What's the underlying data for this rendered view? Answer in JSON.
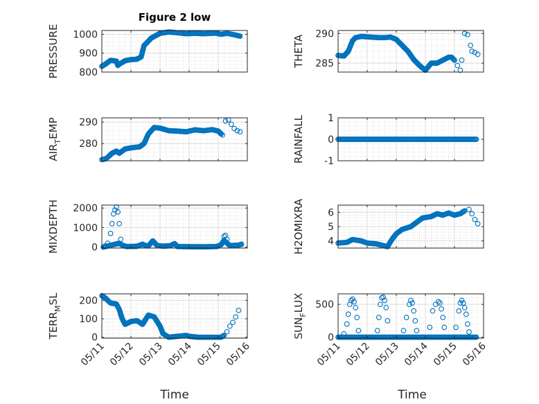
{
  "figure": {
    "title": "Figure 2 low",
    "xlabel": "Time"
  },
  "style": {
    "marker_color": "#0072bd",
    "grid_color": "#d9d9d9",
    "axis_color": "#262626"
  },
  "chart_data": [
    {
      "type": "scatter",
      "title": "Figure 2 low",
      "ylabel": "PRESSURE",
      "ylabel_parts": [
        {
          "t": "PRESSURE",
          "sub": false
        }
      ],
      "xlim": [
        0,
        5
      ],
      "ylim": [
        800,
        1020
      ],
      "yticks": [
        800,
        900,
        1000
      ],
      "ytick_labels": [
        "800",
        "900",
        "1000"
      ],
      "xticks": [
        0,
        1,
        2,
        3,
        4,
        5
      ],
      "xtick_labels": [
        "05/11",
        "05/12",
        "05/13",
        "05/14",
        "05/15",
        "05/16"
      ],
      "show_xtick_labels": false,
      "grid": true,
      "minor_grid": true,
      "series_dense": [
        [
          0,
          830
        ],
        [
          0.15,
          845
        ],
        [
          0.3,
          862
        ],
        [
          0.5,
          858
        ],
        [
          0.55,
          835
        ],
        [
          0.6,
          842
        ],
        [
          0.8,
          860
        ],
        [
          1.0,
          866
        ],
        [
          1.2,
          868
        ],
        [
          1.35,
          880
        ],
        [
          1.45,
          940
        ],
        [
          1.7,
          980
        ],
        [
          2.0,
          1005
        ],
        [
          2.3,
          1012
        ],
        [
          2.6,
          1008
        ],
        [
          2.9,
          1003
        ],
        [
          3.2,
          1005
        ],
        [
          3.5,
          1003
        ],
        [
          3.9,
          1006
        ],
        [
          4.1,
          1000
        ],
        [
          4.3,
          1005
        ],
        [
          4.6,
          996
        ],
        [
          4.75,
          990
        ]
      ],
      "series_sparse": []
    },
    {
      "type": "scatter",
      "ylabel": "THETA",
      "ylabel_parts": [
        {
          "t": "THETA",
          "sub": false
        }
      ],
      "xlim": [
        0,
        5
      ],
      "ylim": [
        283.5,
        290.5
      ],
      "yticks": [
        285,
        290
      ],
      "ytick_labels": [
        "285",
        "290"
      ],
      "xticks": [
        0,
        1,
        2,
        3,
        4,
        5
      ],
      "xtick_labels": [
        "05/11",
        "05/12",
        "05/13",
        "05/14",
        "05/15",
        "05/16"
      ],
      "show_xtick_labels": false,
      "grid": true,
      "minor_grid": true,
      "series_dense": [
        [
          0,
          286.3
        ],
        [
          0.2,
          286.2
        ],
        [
          0.35,
          287
        ],
        [
          0.5,
          288.8
        ],
        [
          0.6,
          289.3
        ],
        [
          0.8,
          289.5
        ],
        [
          1.1,
          289.4
        ],
        [
          1.4,
          289.3
        ],
        [
          1.6,
          289.3
        ],
        [
          1.8,
          289.4
        ],
        [
          2.0,
          289
        ],
        [
          2.2,
          288
        ],
        [
          2.4,
          287
        ],
        [
          2.6,
          285.6
        ],
        [
          2.8,
          284.6
        ],
        [
          3.0,
          283.8
        ],
        [
          3.2,
          285
        ],
        [
          3.4,
          285
        ],
        [
          3.6,
          285.5
        ],
        [
          3.8,
          286
        ],
        [
          3.9,
          286
        ],
        [
          4.0,
          285.5
        ]
      ],
      "series_sparse": [
        [
          4.1,
          284.6
        ],
        [
          4.2,
          283.8
        ],
        [
          4.25,
          285.5
        ],
        [
          4.35,
          290
        ],
        [
          4.45,
          289.8
        ],
        [
          4.55,
          288
        ],
        [
          4.6,
          287
        ],
        [
          4.7,
          286.8
        ],
        [
          4.8,
          286.5
        ]
      ]
    },
    {
      "type": "scatter",
      "ylabel": "AIR_TEMP",
      "ylabel_parts": [
        {
          "t": "AIR",
          "sub": false
        },
        {
          "t": "T",
          "sub": true
        },
        {
          "t": "EMP",
          "sub": false
        }
      ],
      "xlim": [
        0,
        5
      ],
      "ylim": [
        272,
        292
      ],
      "yticks": [
        280,
        290
      ],
      "ytick_labels": [
        "280",
        "290"
      ],
      "xticks": [
        0,
        1,
        2,
        3,
        4,
        5
      ],
      "xtick_labels": [
        "05/11",
        "05/12",
        "05/13",
        "05/14",
        "05/15",
        "05/16"
      ],
      "show_xtick_labels": false,
      "grid": true,
      "minor_grid": true,
      "series_dense": [
        [
          0,
          272.5
        ],
        [
          0.15,
          273
        ],
        [
          0.35,
          275.5
        ],
        [
          0.5,
          276.5
        ],
        [
          0.6,
          275.5
        ],
        [
          0.8,
          277.5
        ],
        [
          1.0,
          278
        ],
        [
          1.3,
          278.5
        ],
        [
          1.45,
          280
        ],
        [
          1.6,
          284.5
        ],
        [
          1.8,
          287.5
        ],
        [
          2.0,
          287.2
        ],
        [
          2.3,
          286
        ],
        [
          2.6,
          285.8
        ],
        [
          2.9,
          285.5
        ],
        [
          3.2,
          286.4
        ],
        [
          3.5,
          286
        ],
        [
          3.8,
          286.5
        ],
        [
          4.0,
          285.8
        ],
        [
          4.1,
          284.5
        ]
      ],
      "series_sparse": [
        [
          4.15,
          284
        ],
        [
          4.25,
          290.5
        ],
        [
          4.35,
          291
        ],
        [
          4.45,
          289
        ],
        [
          4.55,
          287
        ],
        [
          4.65,
          286
        ],
        [
          4.75,
          285.5
        ]
      ]
    },
    {
      "type": "scatter",
      "ylabel": "RAINFALL",
      "ylabel_parts": [
        {
          "t": "RAINFALL",
          "sub": false
        }
      ],
      "xlim": [
        0,
        5
      ],
      "ylim": [
        -1,
        1
      ],
      "yticks": [
        -1,
        0,
        1
      ],
      "ytick_labels": [
        "-1",
        "0",
        "1"
      ],
      "xticks": [
        0,
        1,
        2,
        3,
        4,
        5
      ],
      "xtick_labels": [
        "05/11",
        "05/12",
        "05/13",
        "05/14",
        "05/15",
        "05/16"
      ],
      "show_xtick_labels": false,
      "grid": true,
      "minor_grid": true,
      "series_dense": [
        [
          0,
          0
        ],
        [
          4.75,
          0
        ]
      ],
      "series_sparse": []
    },
    {
      "type": "scatter",
      "ylabel": "MIXDEPTH",
      "ylabel_parts": [
        {
          "t": "MIXDEPTH",
          "sub": false
        }
      ],
      "xlim": [
        0,
        5
      ],
      "ylim": [
        -50,
        2150
      ],
      "yticks": [
        0,
        1000,
        2000
      ],
      "ytick_labels": [
        "0",
        "1000",
        "2000"
      ],
      "xticks": [
        0,
        1,
        2,
        3,
        4,
        5
      ],
      "xtick_labels": [
        "05/11",
        "05/12",
        "05/13",
        "05/14",
        "05/15",
        "05/16"
      ],
      "show_xtick_labels": false,
      "grid": true,
      "minor_grid": true,
      "series_dense": [
        [
          0.05,
          0
        ],
        [
          0.6,
          200
        ],
        [
          0.7,
          100
        ],
        [
          0.85,
          30
        ],
        [
          1.2,
          40
        ],
        [
          1.4,
          150
        ],
        [
          1.5,
          80
        ],
        [
          1.6,
          60
        ],
        [
          1.75,
          320
        ],
        [
          1.9,
          80
        ],
        [
          2.1,
          50
        ],
        [
          2.35,
          70
        ],
        [
          2.5,
          180
        ],
        [
          2.6,
          30
        ],
        [
          3.0,
          20
        ],
        [
          3.5,
          15
        ],
        [
          3.95,
          30
        ],
        [
          4.1,
          120
        ],
        [
          4.2,
          350
        ],
        [
          4.3,
          200
        ],
        [
          4.4,
          80
        ],
        [
          4.7,
          100
        ],
        [
          4.8,
          150
        ]
      ],
      "series_sparse": [
        [
          0.1,
          50
        ],
        [
          0.2,
          200
        ],
        [
          0.3,
          700
        ],
        [
          0.35,
          1200
        ],
        [
          0.4,
          1700
        ],
        [
          0.45,
          1900
        ],
        [
          0.5,
          2050
        ],
        [
          0.55,
          1800
        ],
        [
          0.6,
          1200
        ],
        [
          0.65,
          400
        ],
        [
          4.2,
          550
        ],
        [
          4.25,
          600
        ],
        [
          4.3,
          400
        ]
      ]
    },
    {
      "type": "scatter",
      "ylabel": "H2OMIXRA",
      "ylabel_parts": [
        {
          "t": "H2OMIXRA",
          "sub": false
        }
      ],
      "xlim": [
        0,
        5
      ],
      "ylim": [
        3.5,
        6.5
      ],
      "yticks": [
        4,
        5,
        6
      ],
      "ytick_labels": [
        "4",
        "5",
        "6"
      ],
      "xticks": [
        0,
        1,
        2,
        3,
        4,
        5
      ],
      "xtick_labels": [
        "05/11",
        "05/12",
        "05/13",
        "05/14",
        "05/15",
        "05/16"
      ],
      "show_xtick_labels": false,
      "grid": true,
      "minor_grid": true,
      "series_dense": [
        [
          0,
          3.85
        ],
        [
          0.3,
          3.9
        ],
        [
          0.5,
          4.1
        ],
        [
          0.8,
          4.0
        ],
        [
          1.0,
          3.85
        ],
        [
          1.3,
          3.8
        ],
        [
          1.5,
          3.7
        ],
        [
          1.7,
          3.6
        ],
        [
          1.85,
          4.1
        ],
        [
          2.0,
          4.5
        ],
        [
          2.2,
          4.8
        ],
        [
          2.5,
          5.0
        ],
        [
          2.7,
          5.3
        ],
        [
          2.9,
          5.6
        ],
        [
          3.2,
          5.7
        ],
        [
          3.4,
          5.9
        ],
        [
          3.6,
          5.8
        ],
        [
          3.8,
          5.95
        ],
        [
          4.0,
          5.8
        ],
        [
          4.2,
          5.9
        ],
        [
          4.35,
          6.1
        ]
      ],
      "series_sparse": [
        [
          4.5,
          6.2
        ],
        [
          4.6,
          5.9
        ],
        [
          4.7,
          5.5
        ],
        [
          4.8,
          5.2
        ]
      ]
    },
    {
      "type": "scatter",
      "ylabel": "TERR_MSL",
      "ylabel_parts": [
        {
          "t": "TERR",
          "sub": false
        },
        {
          "t": "M",
          "sub": true
        },
        {
          "t": "SL",
          "sub": false
        }
      ],
      "xlim": [
        0,
        5
      ],
      "ylim": [
        -5,
        235
      ],
      "yticks": [
        0,
        100,
        200
      ],
      "ytick_labels": [
        "0",
        "100",
        "200"
      ],
      "xticks": [
        0,
        1,
        2,
        3,
        4,
        5
      ],
      "xtick_labels": [
        "05/11",
        "05/12",
        "05/13",
        "05/14",
        "05/15",
        "05/16"
      ],
      "show_xtick_labels": true,
      "grid": true,
      "minor_grid": true,
      "series_dense": [
        [
          0,
          225
        ],
        [
          0.1,
          215
        ],
        [
          0.3,
          185
        ],
        [
          0.5,
          180
        ],
        [
          0.6,
          150
        ],
        [
          0.7,
          100
        ],
        [
          0.8,
          70
        ],
        [
          1.0,
          85
        ],
        [
          1.2,
          90
        ],
        [
          1.4,
          70
        ],
        [
          1.6,
          120
        ],
        [
          1.8,
          110
        ],
        [
          2.0,
          60
        ],
        [
          2.1,
          20
        ],
        [
          2.3,
          0
        ],
        [
          2.6,
          5
        ],
        [
          2.9,
          10
        ],
        [
          3.0,
          5
        ],
        [
          3.3,
          0
        ],
        [
          3.6,
          0
        ],
        [
          3.9,
          0
        ],
        [
          4.1,
          0
        ],
        [
          4.2,
          10
        ]
      ],
      "series_sparse": [
        [
          0.65,
          120
        ],
        [
          4.3,
          30
        ],
        [
          4.4,
          60
        ],
        [
          4.5,
          80
        ],
        [
          4.6,
          110
        ],
        [
          4.7,
          145
        ]
      ]
    },
    {
      "type": "scatter",
      "ylabel": "SUN_FLUX",
      "ylabel_parts": [
        {
          "t": "SUN",
          "sub": false
        },
        {
          "t": "F",
          "sub": true
        },
        {
          "t": "LUX",
          "sub": false
        }
      ],
      "xlim": [
        0,
        5
      ],
      "ylim": [
        -15,
        660
      ],
      "yticks": [
        0,
        500
      ],
      "ytick_labels": [
        "0",
        "500"
      ],
      "xticks": [
        0,
        1,
        2,
        3,
        4,
        5
      ],
      "xtick_labels": [
        "05/11",
        "05/12",
        "05/13",
        "05/14",
        "05/15",
        "05/16"
      ],
      "show_xtick_labels": true,
      "grid": true,
      "minor_grid": true,
      "series_dense": [
        [
          0,
          0
        ],
        [
          0.15,
          0
        ],
        [
          0.75,
          0
        ],
        [
          0.95,
          0
        ],
        [
          1.05,
          0
        ],
        [
          1.3,
          0
        ],
        [
          1.7,
          0
        ],
        [
          2.0,
          0
        ],
        [
          2.1,
          0
        ],
        [
          2.3,
          0
        ],
        [
          2.8,
          0
        ],
        [
          3.1,
          0
        ],
        [
          3.8,
          0
        ],
        [
          4.0,
          0
        ],
        [
          4.5,
          0
        ],
        [
          4.75,
          0
        ]
      ],
      "series_sparse": [
        [
          0.2,
          50
        ],
        [
          0.3,
          200
        ],
        [
          0.35,
          350
        ],
        [
          0.4,
          500
        ],
        [
          0.45,
          560
        ],
        [
          0.5,
          580
        ],
        [
          0.55,
          540
        ],
        [
          0.6,
          450
        ],
        [
          0.65,
          300
        ],
        [
          0.7,
          100
        ],
        [
          1.35,
          100
        ],
        [
          1.4,
          300
        ],
        [
          1.45,
          500
        ],
        [
          1.5,
          600
        ],
        [
          1.55,
          610
        ],
        [
          1.6,
          560
        ],
        [
          1.65,
          450
        ],
        [
          1.7,
          250
        ],
        [
          2.25,
          100
        ],
        [
          2.35,
          300
        ],
        [
          2.45,
          500
        ],
        [
          2.5,
          560
        ],
        [
          2.55,
          520
        ],
        [
          2.6,
          400
        ],
        [
          2.65,
          250
        ],
        [
          2.7,
          100
        ],
        [
          3.15,
          150
        ],
        [
          3.25,
          400
        ],
        [
          3.35,
          500
        ],
        [
          3.45,
          540
        ],
        [
          3.5,
          520
        ],
        [
          3.55,
          430
        ],
        [
          3.6,
          300
        ],
        [
          3.65,
          150
        ],
        [
          4.05,
          150
        ],
        [
          4.15,
          400
        ],
        [
          4.2,
          520
        ],
        [
          4.25,
          560
        ],
        [
          4.3,
          520
        ],
        [
          4.35,
          450
        ],
        [
          4.4,
          350
        ],
        [
          4.45,
          200
        ],
        [
          4.5,
          80
        ]
      ]
    }
  ]
}
